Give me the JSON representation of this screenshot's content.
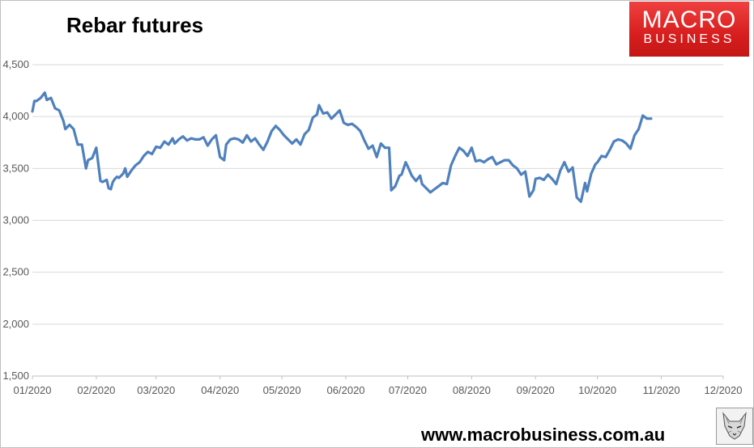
{
  "chart_data": {
    "type": "line",
    "title": "Rebar futures",
    "xlabel": "",
    "ylabel": "",
    "ylim": [
      1500,
      4500
    ],
    "yticks": [
      1500,
      2000,
      2500,
      3000,
      3500,
      4000,
      4500
    ],
    "ytick_labels": [
      "1,500",
      "2,000",
      "2,500",
      "3,000",
      "3,500",
      "4,000",
      "4,500"
    ],
    "xlim": [
      "2020-01-01",
      "2020-12-01"
    ],
    "xticks": [
      "2020-01-01",
      "2020-02-01",
      "2020-03-01",
      "2020-04-01",
      "2020-05-01",
      "2020-06-01",
      "2020-07-01",
      "2020-08-01",
      "2020-09-01",
      "2020-10-01",
      "2020-11-01",
      "2020-12-01"
    ],
    "xtick_labels": [
      "01/2020",
      "02/2020",
      "03/2020",
      "04/2020",
      "05/2020",
      "06/2020",
      "07/2020",
      "08/2020",
      "09/2020",
      "10/2020",
      "11/2020",
      "12/2020"
    ],
    "grid": true,
    "legend": "none",
    "line_color": "#4f81bd",
    "series": [
      {
        "x": [
          "2020-01-01",
          "2020-01-02",
          "2020-01-03",
          "2020-01-05",
          "2020-01-07",
          "2020-01-08",
          "2020-01-10",
          "2020-01-12",
          "2020-01-14",
          "2020-01-16",
          "2020-01-17",
          "2020-01-19",
          "2020-01-21",
          "2020-01-23",
          "2020-01-25",
          "2020-01-27",
          "2020-01-28",
          "2020-01-30",
          "2020-02-01",
          "2020-02-03",
          "2020-02-04",
          "2020-02-06",
          "2020-02-07",
          "2020-02-08",
          "2020-02-09",
          "2020-02-10",
          "2020-02-11",
          "2020-02-12",
          "2020-02-14",
          "2020-02-15",
          "2020-02-16",
          "2020-02-18",
          "2020-02-20",
          "2020-02-22",
          "2020-02-24",
          "2020-02-26",
          "2020-02-28",
          "2020-03-01",
          "2020-03-03",
          "2020-03-05",
          "2020-03-07",
          "2020-03-09",
          "2020-03-10",
          "2020-03-12",
          "2020-03-14",
          "2020-03-16",
          "2020-03-18",
          "2020-03-20",
          "2020-03-22",
          "2020-03-24",
          "2020-03-26",
          "2020-03-28",
          "2020-03-30",
          "2020-04-01",
          "2020-04-03",
          "2020-04-04",
          "2020-04-06",
          "2020-04-08",
          "2020-04-10",
          "2020-04-12",
          "2020-04-14",
          "2020-04-16",
          "2020-04-18",
          "2020-04-20",
          "2020-04-22",
          "2020-04-24",
          "2020-04-26",
          "2020-04-28",
          "2020-04-30",
          "2020-05-02",
          "2020-05-04",
          "2020-05-06",
          "2020-05-08",
          "2020-05-10",
          "2020-05-12",
          "2020-05-14",
          "2020-05-16",
          "2020-05-18",
          "2020-05-19",
          "2020-05-21",
          "2020-05-23",
          "2020-05-25",
          "2020-05-27",
          "2020-05-29",
          "2020-05-31",
          "2020-06-02",
          "2020-06-04",
          "2020-06-06",
          "2020-06-08",
          "2020-06-10",
          "2020-06-12",
          "2020-06-14",
          "2020-06-16",
          "2020-06-18",
          "2020-06-20",
          "2020-06-22",
          "2020-06-23",
          "2020-06-25",
          "2020-06-27",
          "2020-06-28",
          "2020-06-30",
          "2020-07-01",
          "2020-07-03",
          "2020-07-05",
          "2020-07-07",
          "2020-07-08",
          "2020-07-10",
          "2020-07-12",
          "2020-07-14",
          "2020-07-16",
          "2020-07-18",
          "2020-07-20",
          "2020-07-22",
          "2020-07-24",
          "2020-07-26",
          "2020-07-28",
          "2020-07-30",
          "2020-08-01",
          "2020-08-03",
          "2020-08-05",
          "2020-08-07",
          "2020-08-09",
          "2020-08-11",
          "2020-08-13",
          "2020-08-15",
          "2020-08-17",
          "2020-08-19",
          "2020-08-21",
          "2020-08-23",
          "2020-08-25",
          "2020-08-27",
          "2020-08-29",
          "2020-08-31",
          "2020-09-01",
          "2020-09-03",
          "2020-09-05",
          "2020-09-07",
          "2020-09-09",
          "2020-09-11",
          "2020-09-13",
          "2020-09-15",
          "2020-09-17",
          "2020-09-19",
          "2020-09-21",
          "2020-09-23",
          "2020-09-25",
          "2020-09-26",
          "2020-09-28",
          "2020-09-30",
          "2020-10-01",
          "2020-10-03",
          "2020-10-05",
          "2020-10-07",
          "2020-10-09",
          "2020-10-11",
          "2020-10-13",
          "2020-10-15",
          "2020-10-17",
          "2020-10-19",
          "2020-10-21",
          "2020-10-23",
          "2020-10-25",
          "2020-10-27"
        ],
        "values": [
          4050,
          4150,
          4150,
          4180,
          4230,
          4160,
          4180,
          4080,
          4060,
          3960,
          3880,
          3920,
          3880,
          3730,
          3730,
          3500,
          3580,
          3600,
          3700,
          3380,
          3370,
          3390,
          3310,
          3300,
          3370,
          3400,
          3420,
          3410,
          3450,
          3500,
          3420,
          3480,
          3530,
          3560,
          3620,
          3660,
          3640,
          3710,
          3700,
          3760,
          3730,
          3790,
          3740,
          3780,
          3810,
          3770,
          3790,
          3780,
          3780,
          3800,
          3720,
          3780,
          3820,
          3610,
          3580,
          3730,
          3780,
          3790,
          3780,
          3750,
          3820,
          3760,
          3790,
          3730,
          3680,
          3760,
          3860,
          3910,
          3870,
          3820,
          3780,
          3740,
          3780,
          3730,
          3830,
          3870,
          3990,
          4020,
          4110,
          4030,
          4040,
          3980,
          4020,
          4060,
          3940,
          3920,
          3930,
          3900,
          3860,
          3770,
          3690,
          3720,
          3610,
          3740,
          3700,
          3700,
          3290,
          3330,
          3430,
          3440,
          3560,
          3520,
          3430,
          3380,
          3430,
          3350,
          3310,
          3270,
          3300,
          3330,
          3360,
          3350,
          3530,
          3620,
          3700,
          3670,
          3620,
          3700,
          3570,
          3580,
          3560,
          3590,
          3610,
          3540,
          3560,
          3580,
          3580,
          3530,
          3500,
          3440,
          3470,
          3230,
          3290,
          3400,
          3410,
          3390,
          3440,
          3400,
          3350,
          3480,
          3560,
          3470,
          3510,
          3220,
          3180,
          3360,
          3280,
          3450,
          3540,
          3560,
          3620,
          3610,
          3680,
          3760,
          3780,
          3770,
          3740,
          3690,
          3820,
          3880,
          4010,
          3980,
          3980
        ]
      }
    ]
  },
  "logo": {
    "line1": "MACRO",
    "line2": "BUSINESS"
  },
  "footer": {
    "url": "www.macrobusiness.com.au"
  }
}
